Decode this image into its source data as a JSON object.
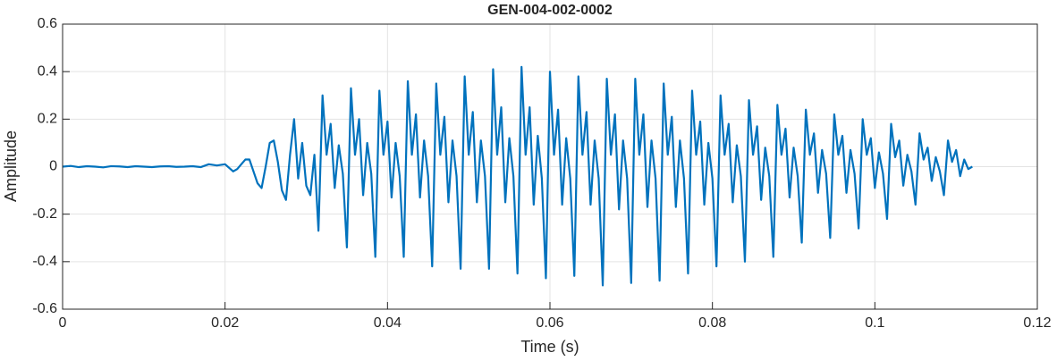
{
  "chart_data": {
    "type": "line",
    "title": "GEN-004-002-0002",
    "x_label": "Time (s)",
    "y_label": "Amplitude",
    "color": "#0072bd",
    "grid": true,
    "xlim": [
      0,
      0.12
    ],
    "xticks": [
      0,
      0.02,
      0.04,
      0.06,
      0.08,
      0.1,
      0.12
    ],
    "ylim": [
      -0.6,
      0.6
    ],
    "yticks": [
      -0.6,
      -0.4,
      -0.2,
      0,
      0.2,
      0.4,
      0.6
    ],
    "x": [
      0,
      0.001,
      0.002,
      0.003,
      0.004,
      0.005,
      0.006,
      0.007,
      0.008,
      0.009,
      0.01,
      0.011,
      0.012,
      0.013,
      0.014,
      0.015,
      0.016,
      0.017,
      0.018,
      0.019,
      0.02,
      0.0205,
      0.021,
      0.0215,
      0.022,
      0.0225,
      0.023,
      0.0235,
      0.024,
      0.0245,
      0.025,
      0.0255,
      0.026,
      0.0265,
      0.027,
      0.0275,
      0.028,
      0.0285,
      0.029,
      0.0295,
      0.03,
      0.0305,
      0.031,
      0.0315,
      0.032,
      0.0325,
      0.033,
      0.0335,
      0.034,
      0.0345,
      0.035,
      0.0355,
      0.036,
      0.0365,
      0.037,
      0.0375,
      0.038,
      0.0385,
      0.039,
      0.0395,
      0.04,
      0.0405,
      0.041,
      0.0415,
      0.042,
      0.0425,
      0.043,
      0.0435,
      0.044,
      0.0445,
      0.045,
      0.0455,
      0.046,
      0.0465,
      0.047,
      0.0475,
      0.048,
      0.0485,
      0.049,
      0.0495,
      0.05,
      0.0505,
      0.051,
      0.0515,
      0.052,
      0.0525,
      0.053,
      0.0535,
      0.054,
      0.0545,
      0.055,
      0.0555,
      0.056,
      0.0565,
      0.057,
      0.0575,
      0.058,
      0.0585,
      0.059,
      0.0595,
      0.06,
      0.0605,
      0.061,
      0.0615,
      0.062,
      0.0625,
      0.063,
      0.0635,
      0.064,
      0.0645,
      0.065,
      0.0655,
      0.066,
      0.0665,
      0.067,
      0.0675,
      0.068,
      0.0685,
      0.069,
      0.0695,
      0.07,
      0.0705,
      0.071,
      0.0715,
      0.072,
      0.0725,
      0.073,
      0.0735,
      0.074,
      0.0745,
      0.075,
      0.0755,
      0.076,
      0.0765,
      0.077,
      0.0775,
      0.078,
      0.0785,
      0.079,
      0.0795,
      0.08,
      0.0805,
      0.081,
      0.0815,
      0.082,
      0.0825,
      0.083,
      0.0835,
      0.084,
      0.0845,
      0.085,
      0.0855,
      0.086,
      0.0865,
      0.087,
      0.0875,
      0.088,
      0.0885,
      0.089,
      0.0895,
      0.09,
      0.0905,
      0.091,
      0.0915,
      0.092,
      0.0925,
      0.093,
      0.0935,
      0.094,
      0.0945,
      0.095,
      0.0955,
      0.096,
      0.0965,
      0.097,
      0.0975,
      0.098,
      0.0985,
      0.099,
      0.0995,
      0.1,
      0.1005,
      0.101,
      0.1015,
      0.102,
      0.1025,
      0.103,
      0.1035,
      0.104,
      0.1045,
      0.105,
      0.1055,
      0.106,
      0.1065,
      0.107,
      0.1075,
      0.108,
      0.1085,
      0.109,
      0.1095,
      0.11,
      0.1105,
      0.111,
      0.1115,
      0.112
    ],
    "values": [
      0,
      0.003,
      -0.002,
      0.002,
      0,
      -0.003,
      0.002,
      0.001,
      -0.002,
      0.002,
      0,
      -0.002,
      0.001,
      0.002,
      -0.001,
      0,
      0.002,
      -0.002,
      0.01,
      0.005,
      0.01,
      -0.005,
      -0.02,
      -0.01,
      0.01,
      0.03,
      0.03,
      -0.02,
      -0.07,
      -0.09,
      0,
      0.1,
      0.11,
      0.02,
      -0.1,
      -0.14,
      0.05,
      0.2,
      -0.05,
      0.1,
      -0.08,
      -0.12,
      0.05,
      -0.27,
      0.3,
      0.05,
      0.18,
      -0.09,
      0.09,
      -0.03,
      -0.34,
      0.33,
      0.05,
      0.2,
      -0.12,
      0.1,
      -0.03,
      -0.38,
      0.32,
      0.05,
      0.19,
      -0.13,
      0.1,
      -0.04,
      -0.38,
      0.36,
      0.05,
      0.22,
      -0.13,
      0.11,
      -0.04,
      -0.42,
      0.35,
      0.05,
      0.21,
      -0.15,
      0.11,
      -0.04,
      -0.43,
      0.38,
      0.05,
      0.23,
      -0.15,
      0.11,
      -0.04,
      -0.43,
      0.41,
      0.05,
      0.25,
      -0.15,
      0.12,
      -0.04,
      -0.45,
      0.42,
      0.05,
      0.25,
      -0.16,
      0.13,
      -0.05,
      -0.47,
      0.4,
      0.05,
      0.24,
      -0.16,
      0.12,
      -0.05,
      -0.46,
      0.38,
      0.05,
      0.23,
      -0.16,
      0.11,
      -0.05,
      -0.5,
      0.37,
      0.05,
      0.22,
      -0.18,
      0.11,
      -0.05,
      -0.49,
      0.37,
      0.05,
      0.22,
      -0.17,
      0.11,
      -0.05,
      -0.48,
      0.35,
      0.05,
      0.21,
      -0.17,
      0.11,
      -0.05,
      -0.45,
      0.32,
      0.05,
      0.19,
      -0.16,
      0.1,
      -0.05,
      -0.42,
      0.3,
      0.05,
      0.18,
      -0.15,
      0.09,
      -0.04,
      -0.4,
      0.28,
      0.05,
      0.17,
      -0.14,
      0.08,
      -0.04,
      -0.38,
      0.26,
      0.05,
      0.16,
      -0.13,
      0.08,
      -0.04,
      -0.32,
      0.24,
      0.05,
      0.14,
      -0.11,
      0.07,
      -0.03,
      -0.3,
      0.22,
      0.05,
      0.13,
      -0.11,
      0.07,
      -0.03,
      -0.26,
      0.2,
      0.05,
      0.12,
      -0.09,
      0.06,
      -0.03,
      -0.22,
      0.18,
      0.04,
      0.11,
      -0.08,
      0.05,
      -0.02,
      -0.16,
      0.14,
      0.03,
      0.08,
      -0.06,
      0.04,
      -0.02,
      -0.12,
      0.11,
      0.02,
      0.07,
      -0.04,
      0.03,
      -0.01,
      0
    ]
  }
}
